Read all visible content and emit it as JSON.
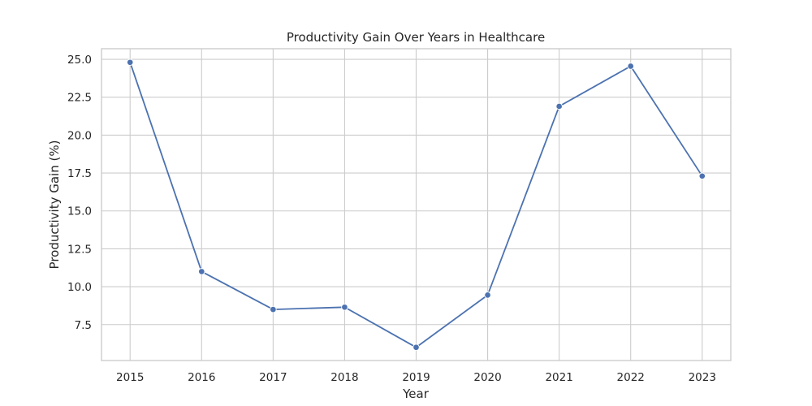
{
  "chart_data": {
    "type": "line",
    "title": "Productivity Gain Over Years in Healthcare",
    "xlabel": "Year",
    "ylabel": "Productivity Gain (%)",
    "x": [
      2015,
      2016,
      2017,
      2018,
      2019,
      2020,
      2021,
      2022,
      2023
    ],
    "x_ticks": [
      "2015",
      "2016",
      "2017",
      "2018",
      "2019",
      "2020",
      "2021",
      "2022",
      "2023"
    ],
    "y_ticks": [
      7.5,
      10.0,
      12.5,
      15.0,
      17.5,
      20.0,
      22.5,
      25.0
    ],
    "y_tick_labels": [
      "7.5",
      "10.0",
      "12.5",
      "15.0",
      "17.5",
      "20.0",
      "22.5",
      "25.0"
    ],
    "xlim": [
      2014.6,
      2023.4
    ],
    "ylim": [
      5.13,
      25.7
    ],
    "grid": true,
    "series": [
      {
        "values": [
          24.8,
          11.0,
          8.5,
          8.65,
          6.0,
          9.45,
          21.9,
          24.55,
          17.3
        ],
        "color": "#4c72b0",
        "marker": "circle"
      }
    ]
  }
}
